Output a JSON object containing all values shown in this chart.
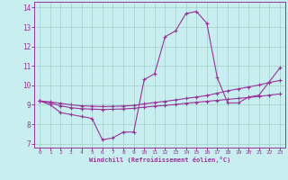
{
  "xlabel": "Windchill (Refroidissement éolien,°C)",
  "background_color": "#c8eef0",
  "grid_color": "#a0d0c8",
  "line_color": "#993399",
  "hours": [
    0,
    1,
    2,
    3,
    4,
    5,
    6,
    7,
    8,
    9,
    10,
    11,
    12,
    13,
    14,
    15,
    16,
    17,
    18,
    19,
    20,
    21,
    22,
    23
  ],
  "temp": [
    9.2,
    9.0,
    8.6,
    8.5,
    8.4,
    8.3,
    7.2,
    7.3,
    7.6,
    7.6,
    10.3,
    10.6,
    12.5,
    12.8,
    13.7,
    13.8,
    13.2,
    10.4,
    9.1,
    9.1,
    9.4,
    9.5,
    10.2,
    10.9
  ],
  "line1": [
    9.2,
    9.1,
    8.95,
    8.85,
    8.8,
    8.78,
    8.76,
    8.77,
    8.79,
    8.82,
    8.88,
    8.93,
    8.97,
    9.02,
    9.08,
    9.13,
    9.18,
    9.23,
    9.28,
    9.33,
    9.38,
    9.43,
    9.5,
    9.56
  ],
  "line2": [
    9.2,
    9.15,
    9.08,
    9.0,
    8.95,
    8.93,
    8.91,
    8.92,
    8.94,
    8.97,
    9.05,
    9.12,
    9.18,
    9.25,
    9.33,
    9.4,
    9.48,
    9.6,
    9.72,
    9.82,
    9.92,
    10.02,
    10.15,
    10.25
  ],
  "ylim": [
    6.8,
    14.3
  ],
  "xlim": [
    -0.5,
    23.5
  ],
  "xtick_labels": [
    "0",
    "1",
    "2",
    "3",
    "4",
    "5",
    "6",
    "7",
    "8",
    "9",
    "10",
    "11",
    "12",
    "13",
    "14",
    "15",
    "16",
    "17",
    "18",
    "19",
    "20",
    "21",
    "22",
    "23"
  ],
  "yticks": [
    7,
    8,
    9,
    10,
    11,
    12,
    13,
    14
  ]
}
